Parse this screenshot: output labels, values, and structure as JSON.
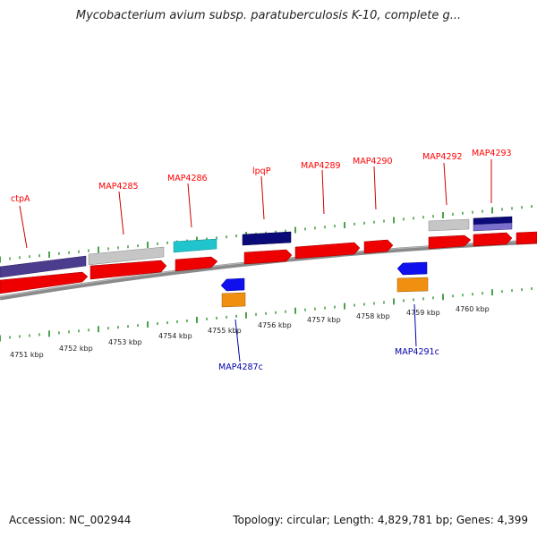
{
  "title": "Mycobacterium avium subsp. paratuberculosis K-10, complete g...",
  "accession_text": "Accession: NC_002944",
  "topology_text": "Topology: circular; Length: 4,829,781 bp; Genes: 4,399",
  "colors": {
    "backbone": "#8a8a8a",
    "tick": "#1f8a1f",
    "forward_gene": "#ee0000",
    "reverse_gene": "#1010ee",
    "label_forward": "#ff0000",
    "label_reverse": "#0000aa"
  },
  "kbp_labels": [
    "4751 kbp",
    "4752 kbp",
    "4753 kbp",
    "4754 kbp",
    "4755 kbp",
    "4756 kbp",
    "4757 kbp",
    "4758 kbp",
    "4759 kbp",
    "4760 kbp"
  ],
  "forward_gene_labels": [
    "ctpA",
    "MAP4285",
    "MAP4286",
    "lpqP",
    "MAP4289",
    "MAP4290",
    "MAP4292",
    "MAP4293"
  ],
  "reverse_gene_labels": [
    "MAP4287c",
    "MAP4291c"
  ]
}
